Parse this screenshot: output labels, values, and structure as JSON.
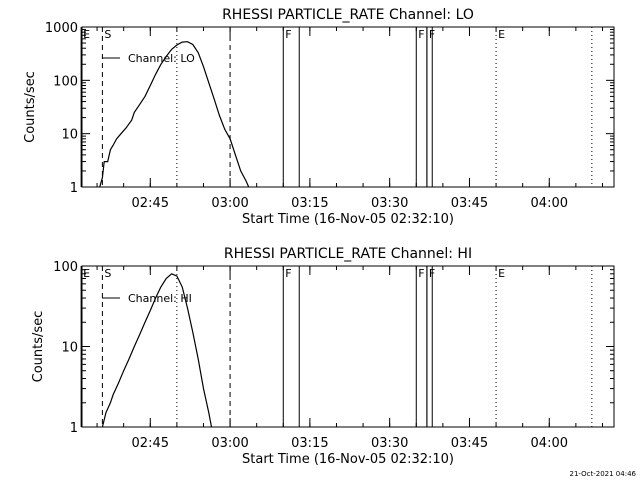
{
  "footer": {
    "timestamp": "21-Oct-2021 04:46"
  },
  "chart_data": [
    {
      "type": "line",
      "title": "RHESSI PARTICLE_RATE Channel: LO",
      "xlabel": "Start Time (16-Nov-05 02:32:10)",
      "ylabel": "Counts/sec",
      "x_ticks": [
        "02:45",
        "03:00",
        "03:15",
        "03:30",
        "03:45",
        "04:00"
      ],
      "y_ticks": [
        "1",
        "10",
        "100",
        "1000"
      ],
      "ylim": [
        1,
        1000
      ],
      "yscale": "log",
      "legend": "Channel: LO",
      "markers": [
        {
          "label": "E",
          "time": "02:32",
          "style": "solid"
        },
        {
          "label": "S",
          "time": "02:36",
          "style": "dashed"
        },
        {
          "label": "",
          "time": "02:50",
          "style": "dotted"
        },
        {
          "label": "",
          "time": "03:00",
          "style": "dashed"
        },
        {
          "label": "F",
          "time": "03:10",
          "style": "solid"
        },
        {
          "label": "",
          "time": "03:13",
          "style": "solid"
        },
        {
          "label": "F",
          "time": "03:35",
          "style": "solid"
        },
        {
          "label": "",
          "time": "03:37",
          "style": "solid"
        },
        {
          "label": "F",
          "time": "03:37",
          "style": "solid"
        },
        {
          "label": "",
          "time": "03:38",
          "style": "solid"
        },
        {
          "label": "E",
          "time": "03:50",
          "style": "dotted"
        },
        {
          "label": "",
          "time": "04:08",
          "style": "dotted"
        }
      ],
      "series": [
        {
          "name": "Channel: LO",
          "points": [
            [
              "02:35:30",
              1
            ],
            [
              "02:36:00",
              1.5
            ],
            [
              "02:36:20",
              3
            ],
            [
              "02:37:00",
              3
            ],
            [
              "02:37:30",
              5
            ],
            [
              "02:38:00",
              6
            ],
            [
              "02:38:40",
              8
            ],
            [
              "02:39:30",
              10
            ],
            [
              "02:40:30",
              13
            ],
            [
              "02:41:30",
              18
            ],
            [
              "02:42:00",
              25
            ],
            [
              "02:43:00",
              35
            ],
            [
              "02:44:00",
              50
            ],
            [
              "02:45:00",
              80
            ],
            [
              "02:46:00",
              130
            ],
            [
              "02:47:00",
              200
            ],
            [
              "02:48:00",
              280
            ],
            [
              "02:49:00",
              380
            ],
            [
              "02:50:00",
              460
            ],
            [
              "02:51:00",
              520
            ],
            [
              "02:52:00",
              530
            ],
            [
              "02:53:00",
              470
            ],
            [
              "02:54:00",
              330
            ],
            [
              "02:55:00",
              180
            ],
            [
              "02:56:00",
              90
            ],
            [
              "02:57:00",
              45
            ],
            [
              "02:58:00",
              22
            ],
            [
              "02:59:00",
              12
            ],
            [
              "03:00:00",
              8
            ],
            [
              "03:01:00",
              4
            ],
            [
              "03:02:00",
              2
            ],
            [
              "03:03:00",
              1.3
            ],
            [
              "03:03:30",
              1
            ]
          ]
        }
      ]
    },
    {
      "type": "line",
      "title": "RHESSI PARTICLE_RATE Channel: HI",
      "xlabel": "Start Time (16-Nov-05 02:32:10)",
      "ylabel": "Counts/sec",
      "x_ticks": [
        "02:45",
        "03:00",
        "03:15",
        "03:30",
        "03:45",
        "04:00"
      ],
      "y_ticks": [
        "1",
        "10",
        "100"
      ],
      "ylim": [
        1,
        100
      ],
      "yscale": "log",
      "legend": "Channel: HI",
      "markers": [
        {
          "label": "E",
          "time": "02:32",
          "style": "solid"
        },
        {
          "label": "S",
          "time": "02:36",
          "style": "dashed"
        },
        {
          "label": "",
          "time": "02:50",
          "style": "dotted"
        },
        {
          "label": "",
          "time": "03:00",
          "style": "dashed"
        },
        {
          "label": "F",
          "time": "03:10",
          "style": "solid"
        },
        {
          "label": "",
          "time": "03:13",
          "style": "solid"
        },
        {
          "label": "F",
          "time": "03:35",
          "style": "solid"
        },
        {
          "label": "",
          "time": "03:37",
          "style": "solid"
        },
        {
          "label": "F",
          "time": "03:37",
          "style": "solid"
        },
        {
          "label": "",
          "time": "03:38",
          "style": "solid"
        },
        {
          "label": "E",
          "time": "03:50",
          "style": "dotted"
        },
        {
          "label": "",
          "time": "04:08",
          "style": "dotted"
        }
      ],
      "series": [
        {
          "name": "Channel: HI",
          "points": [
            [
              "02:36:00",
              1
            ],
            [
              "02:36:40",
              1.5
            ],
            [
              "02:37:30",
              2
            ],
            [
              "02:38:00",
              2.5
            ],
            [
              "02:39:00",
              3.5
            ],
            [
              "02:40:00",
              5
            ],
            [
              "02:41:00",
              7
            ],
            [
              "02:42:00",
              10
            ],
            [
              "02:43:00",
              14
            ],
            [
              "02:44:00",
              20
            ],
            [
              "02:45:00",
              28
            ],
            [
              "02:46:00",
              40
            ],
            [
              "02:47:00",
              55
            ],
            [
              "02:48:00",
              70
            ],
            [
              "02:49:00",
              80
            ],
            [
              "02:50:00",
              75
            ],
            [
              "02:51:00",
              55
            ],
            [
              "02:52:00",
              30
            ],
            [
              "02:53:00",
              15
            ],
            [
              "02:54:00",
              7
            ],
            [
              "02:55:00",
              3
            ],
            [
              "02:56:00",
              1.5
            ],
            [
              "02:56:30",
              1
            ]
          ]
        }
      ]
    }
  ]
}
